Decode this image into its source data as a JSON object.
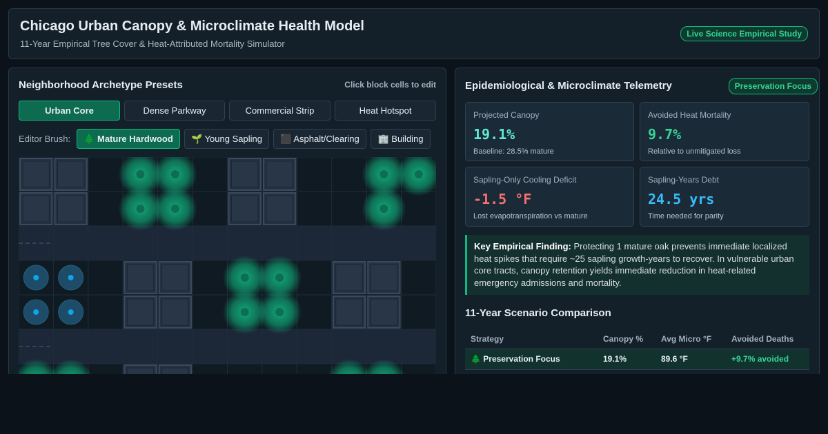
{
  "header": {
    "title": "Chicago Urban Canopy & Microclimate Health Model",
    "subtitle": "11-Year Empirical Tree Cover & Heat-Attributed Mortality Simulator",
    "badge": "Live Science Empirical Study"
  },
  "left": {
    "title": "Neighborhood Archetype Presets",
    "hint": "Click block cells to edit",
    "presets": [
      "Urban Core",
      "Dense Parkway",
      "Commercial Strip",
      "Heat Hotspot"
    ],
    "brush_label": "Editor Brush:",
    "brushes": [
      "🌲 Mature Hardwood",
      "🌱 Young Sapling",
      "⬛ Asphalt/Clearing",
      "🏢 Building"
    ]
  },
  "right": {
    "title": "Epidemiological & Microclimate Telemetry",
    "badge": "Preservation Focus",
    "metrics": [
      {
        "label": "Projected Canopy",
        "value": "19.1%",
        "note": "Baseline: 28.5% mature"
      },
      {
        "label": "Avoided Heat Mortality",
        "value": "9.7%",
        "note": "Relative to unmitigated loss"
      },
      {
        "label": "Sapling-Only Cooling Deficit",
        "value": "-1.5 °F",
        "note": "Lost evapotranspiration vs mature"
      },
      {
        "label": "Sapling-Years Debt",
        "value": "24.5 yrs",
        "note": "Time needed for parity"
      }
    ],
    "finding": {
      "lead": "Key Empirical Finding:",
      "text": "Protecting 1 mature oak prevents immediate localized heat spikes that require ~25 sapling growth-years to recover. In vulnerable urban core tracts, canopy retention yields immediate reduction in heat-related emergency admissions and mortality."
    },
    "comparison": {
      "title": "11-Year Scenario Comparison",
      "columns": [
        "Strategy",
        "Canopy %",
        "Avg Micro °F",
        "Avoided Deaths"
      ],
      "rows": [
        [
          "🌲 Preservation Focus",
          "19.1%",
          "89.6 °F",
          "+9.7% avoided"
        ]
      ]
    }
  }
}
